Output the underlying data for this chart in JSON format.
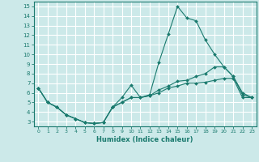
{
  "xlabel": "Humidex (Indice chaleur)",
  "xlim": [
    -0.5,
    23.5
  ],
  "ylim": [
    2.5,
    15.5
  ],
  "yticks": [
    3,
    4,
    5,
    6,
    7,
    8,
    9,
    10,
    11,
    12,
    13,
    14,
    15
  ],
  "xticks": [
    0,
    1,
    2,
    3,
    4,
    5,
    6,
    7,
    8,
    9,
    10,
    11,
    12,
    13,
    14,
    15,
    16,
    17,
    18,
    19,
    20,
    21,
    22,
    23
  ],
  "line_color": "#1a7a6e",
  "background_color": "#cce9e9",
  "grid_color": "#ffffff",
  "line1_x": [
    0,
    1,
    2,
    3,
    4,
    5,
    6,
    7,
    8,
    9,
    10,
    11,
    12,
    13,
    14,
    15,
    16,
    17,
    18,
    19,
    20,
    21,
    22,
    23
  ],
  "line1_y": [
    6.5,
    5.0,
    4.5,
    3.7,
    3.3,
    2.9,
    2.8,
    2.9,
    4.5,
    5.5,
    6.8,
    5.5,
    5.8,
    9.2,
    12.1,
    15.0,
    13.8,
    13.5,
    11.5,
    10.0,
    8.7,
    7.7,
    6.0,
    5.5
  ],
  "line2_x": [
    0,
    1,
    2,
    3,
    4,
    5,
    6,
    7,
    8,
    9,
    10,
    11,
    12,
    13,
    14,
    15,
    16,
    17,
    18,
    19,
    20,
    21,
    22,
    23
  ],
  "line2_y": [
    6.5,
    5.0,
    4.5,
    3.7,
    3.3,
    2.9,
    2.8,
    2.9,
    4.5,
    5.0,
    5.5,
    5.5,
    5.7,
    6.3,
    6.7,
    7.2,
    7.3,
    7.7,
    8.0,
    8.7,
    8.7,
    7.7,
    5.8,
    5.5
  ],
  "line3_x": [
    0,
    1,
    2,
    3,
    4,
    5,
    6,
    7,
    8,
    9,
    10,
    11,
    12,
    13,
    14,
    15,
    16,
    17,
    18,
    19,
    20,
    21,
    22,
    23
  ],
  "line3_y": [
    6.5,
    5.0,
    4.5,
    3.7,
    3.3,
    2.9,
    2.8,
    2.9,
    4.5,
    5.0,
    5.5,
    5.5,
    5.7,
    6.0,
    6.5,
    6.7,
    7.0,
    7.0,
    7.1,
    7.3,
    7.5,
    7.5,
    5.5,
    5.5
  ]
}
